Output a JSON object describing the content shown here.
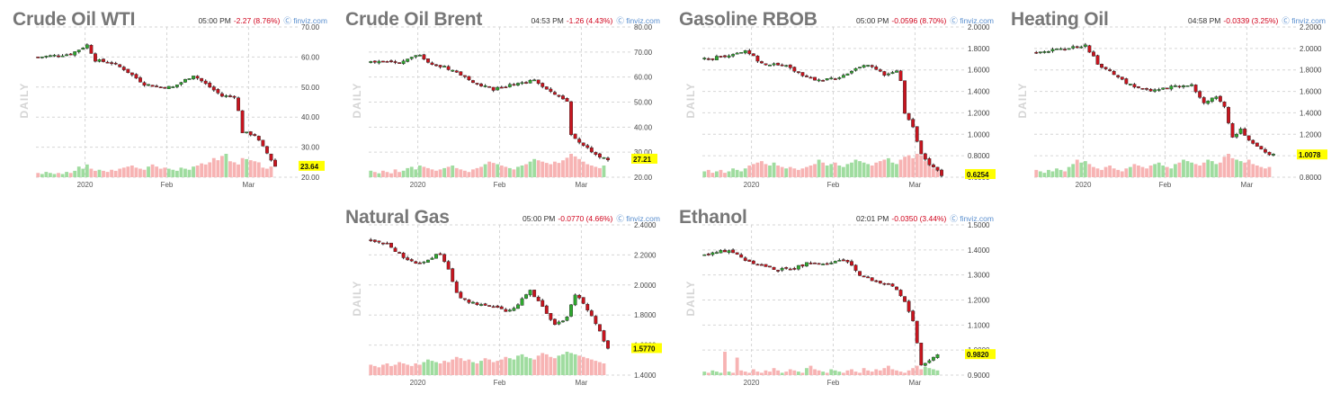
{
  "colors": {
    "up": "#2ea82e",
    "down": "#c8141e",
    "vol_up": "#9fdc9f",
    "vol_down": "#f7b3b3",
    "grid": "#d6d6d6",
    "last_bg": "#ffff00"
  },
  "chart_data": [
    {
      "type": "candlestick",
      "title": "Crude Oil WTI",
      "time": "05:00 PM",
      "change": "-2.27 (8.76%)",
      "source": "finviz.com",
      "side_label": "DAILY",
      "yticks": [
        "70.00",
        "60.00",
        "50.00",
        "40.00",
        "30.00",
        "20.00"
      ],
      "ylim": [
        20,
        70
      ],
      "xticks": [
        {
          "label": "2020",
          "at": 12
        },
        {
          "label": "Feb",
          "at": 32
        },
        {
          "label": "Mar",
          "at": 52
        }
      ],
      "n_days": 64,
      "anchors": [
        [
          0,
          60
        ],
        [
          8,
          61
        ],
        [
          12,
          64
        ],
        [
          14,
          59
        ],
        [
          18,
          58
        ],
        [
          21,
          56
        ],
        [
          26,
          51
        ],
        [
          30,
          50
        ],
        [
          33,
          50
        ],
        [
          38,
          54
        ],
        [
          42,
          50
        ],
        [
          45,
          47
        ],
        [
          48,
          47
        ],
        [
          49,
          42
        ],
        [
          50,
          35
        ],
        [
          53,
          34
        ],
        [
          56,
          28
        ],
        [
          58,
          23.64
        ]
      ],
      "last": "23.64",
      "volume": [
        4,
        3,
        5,
        4,
        3,
        4,
        3,
        5,
        4,
        6,
        10,
        8,
        12,
        8,
        6,
        7,
        6,
        5,
        7,
        6,
        8,
        9,
        10,
        11,
        9,
        8,
        7,
        10,
        12,
        10,
        8,
        9,
        8,
        7,
        6,
        9,
        8,
        7,
        10,
        11,
        13,
        12,
        14,
        18,
        16,
        20,
        22,
        15,
        14,
        12,
        18,
        17,
        16,
        15,
        14,
        9,
        8,
        10
      ]
    },
    {
      "type": "candlestick",
      "title": "Crude Oil Brent",
      "time": "04:53 PM",
      "change": "-1.26 (4.43%)",
      "source": "finviz.com",
      "side_label": "DAILY",
      "yticks": [
        "80.00",
        "70.00",
        "60.00",
        "50.00",
        "40.00",
        "30.00",
        "20.00"
      ],
      "ylim": [
        20,
        80
      ],
      "xticks": [
        {
          "label": "2020",
          "at": 12
        },
        {
          "label": "Feb",
          "at": 32
        },
        {
          "label": "Mar",
          "at": 52
        }
      ],
      "n_days": 64,
      "anchors": [
        [
          0,
          66
        ],
        [
          8,
          66
        ],
        [
          12,
          69
        ],
        [
          14,
          66
        ],
        [
          18,
          64
        ],
        [
          21,
          62
        ],
        [
          26,
          57
        ],
        [
          30,
          55
        ],
        [
          35,
          57
        ],
        [
          40,
          59
        ],
        [
          45,
          53
        ],
        [
          48,
          50
        ],
        [
          49,
          37
        ],
        [
          51,
          34
        ],
        [
          53,
          32
        ],
        [
          55,
          29
        ],
        [
          58,
          27.21
        ]
      ],
      "last": "27.21",
      "volume": [
        5,
        4,
        3,
        5,
        4,
        3,
        6,
        4,
        5,
        7,
        8,
        6,
        9,
        8,
        7,
        6,
        5,
        6,
        7,
        8,
        9,
        7,
        6,
        5,
        4,
        6,
        7,
        8,
        10,
        12,
        11,
        10,
        9,
        8,
        7,
        6,
        8,
        9,
        10,
        12,
        14,
        13,
        12,
        11,
        10,
        12,
        11,
        13,
        15,
        18,
        16,
        14,
        12,
        10,
        9,
        8,
        7,
        9
      ]
    },
    {
      "type": "candlestick",
      "title": "Gasoline RBOB",
      "time": "05:00 PM",
      "change": "-0.0596 (8.70%)",
      "source": "finviz.com",
      "side_label": "DAILY",
      "yticks": [
        "2.0000",
        "1.8000",
        "1.6000",
        "1.4000",
        "1.2000",
        "1.0000",
        "0.8000",
        "0.6000"
      ],
      "ylim": [
        0.6,
        2.0
      ],
      "xticks": [
        {
          "label": "2020",
          "at": 12
        },
        {
          "label": "Feb",
          "at": 32
        },
        {
          "label": "Mar",
          "at": 52
        }
      ],
      "n_days": 64,
      "anchors": [
        [
          0,
          1.7
        ],
        [
          6,
          1.73
        ],
        [
          10,
          1.78
        ],
        [
          14,
          1.66
        ],
        [
          20,
          1.64
        ],
        [
          24,
          1.55
        ],
        [
          28,
          1.5
        ],
        [
          32,
          1.52
        ],
        [
          35,
          1.57
        ],
        [
          40,
          1.65
        ],
        [
          44,
          1.55
        ],
        [
          47,
          1.58
        ],
        [
          48,
          1.5
        ],
        [
          49,
          1.2
        ],
        [
          51,
          1.06
        ],
        [
          53,
          0.82
        ],
        [
          55,
          0.72
        ],
        [
          58,
          0.6254
        ]
      ],
      "last": "0.6254",
      "volume": [
        4,
        5,
        3,
        4,
        5,
        3,
        4,
        6,
        5,
        4,
        6,
        8,
        9,
        10,
        11,
        9,
        8,
        10,
        8,
        7,
        6,
        7,
        6,
        5,
        6,
        7,
        8,
        9,
        12,
        10,
        8,
        9,
        10,
        8,
        7,
        9,
        10,
        12,
        11,
        10,
        9,
        8,
        10,
        11,
        12,
        13,
        10,
        9,
        12,
        14,
        15,
        13,
        16,
        15,
        11,
        8,
        6,
        7
      ]
    },
    {
      "type": "candlestick",
      "title": "Heating Oil",
      "time": "04:58 PM",
      "change": "-0.0339 (3.25%)",
      "source": "finviz.com",
      "side_label": "DAILY",
      "yticks": [
        "2.2000",
        "2.0000",
        "1.8000",
        "1.6000",
        "1.4000",
        "1.2000",
        "1.0000",
        "0.8000"
      ],
      "ylim": [
        0.8,
        2.2
      ],
      "xticks": [
        {
          "label": "2020",
          "at": 12
        },
        {
          "label": "Feb",
          "at": 32
        },
        {
          "label": "Mar",
          "at": 52
        }
      ],
      "n_days": 64,
      "anchors": [
        [
          0,
          1.97
        ],
        [
          6,
          1.99
        ],
        [
          10,
          2.02
        ],
        [
          12,
          2.03
        ],
        [
          15,
          1.86
        ],
        [
          18,
          1.78
        ],
        [
          22,
          1.68
        ],
        [
          25,
          1.63
        ],
        [
          28,
          1.6
        ],
        [
          33,
          1.64
        ],
        [
          38,
          1.66
        ],
        [
          41,
          1.5
        ],
        [
          44,
          1.55
        ],
        [
          46,
          1.45
        ],
        [
          48,
          1.18
        ],
        [
          50,
          1.24
        ],
        [
          52,
          1.15
        ],
        [
          55,
          1.05
        ],
        [
          58,
          1.0078
        ]
      ],
      "last": "1.0078",
      "volume": [
        5,
        4,
        3,
        5,
        4,
        6,
        5,
        4,
        7,
        9,
        12,
        10,
        11,
        9,
        7,
        6,
        5,
        7,
        8,
        6,
        5,
        4,
        6,
        7,
        9,
        8,
        7,
        6,
        8,
        9,
        10,
        8,
        7,
        6,
        9,
        10,
        12,
        11,
        10,
        9,
        8,
        10,
        12,
        11,
        9,
        10,
        14,
        16,
        13,
        12,
        11,
        10,
        12,
        9,
        8,
        7,
        6,
        7
      ]
    },
    {
      "type": "candlestick",
      "title": "Natural Gas",
      "time": "05:00 PM",
      "change": "-0.0770 (4.66%)",
      "source": "finviz.com",
      "side_label": "DAILY",
      "yticks": [
        "2.4000",
        "2.2000",
        "2.0000",
        "1.8000",
        "1.6000",
        "1.4000"
      ],
      "ylim": [
        1.4,
        2.4
      ],
      "xticks": [
        {
          "label": "2020",
          "at": 12
        },
        {
          "label": "Feb",
          "at": 32
        },
        {
          "label": "Mar",
          "at": 52
        }
      ],
      "n_days": 64,
      "anchors": [
        [
          0,
          2.3
        ],
        [
          4,
          2.27
        ],
        [
          8,
          2.19
        ],
        [
          11,
          2.14
        ],
        [
          14,
          2.17
        ],
        [
          17,
          2.21
        ],
        [
          19,
          2.1
        ],
        [
          21,
          1.94
        ],
        [
          23,
          1.9
        ],
        [
          26,
          1.87
        ],
        [
          30,
          1.86
        ],
        [
          33,
          1.82
        ],
        [
          36,
          1.87
        ],
        [
          39,
          1.97
        ],
        [
          42,
          1.85
        ],
        [
          45,
          1.73
        ],
        [
          48,
          1.78
        ],
        [
          50,
          1.94
        ],
        [
          52,
          1.88
        ],
        [
          55,
          1.74
        ],
        [
          57,
          1.63
        ],
        [
          58,
          1.577
        ]
      ],
      "last": "1.5770",
      "volume": [
        8,
        7,
        6,
        8,
        9,
        7,
        8,
        10,
        9,
        8,
        7,
        9,
        8,
        10,
        12,
        11,
        10,
        9,
        11,
        10,
        12,
        14,
        13,
        11,
        12,
        10,
        9,
        11,
        13,
        12,
        10,
        11,
        12,
        14,
        13,
        12,
        15,
        16,
        14,
        13,
        12,
        15,
        17,
        16,
        14,
        13,
        15,
        16,
        18,
        17,
        16,
        15,
        14,
        13,
        12,
        11,
        10,
        9
      ]
    },
    {
      "type": "candlestick",
      "title": "Ethanol",
      "time": "02:01 PM",
      "change": "-0.0350 (3.44%)",
      "source": "finviz.com",
      "side_label": "DAILY",
      "yticks": [
        "1.5000",
        "1.4000",
        "1.3000",
        "1.2000",
        "1.1000",
        "1.0000",
        "0.9000"
      ],
      "ylim": [
        0.9,
        1.5
      ],
      "xticks": [
        {
          "label": "2020",
          "at": 12
        },
        {
          "label": "Feb",
          "at": 32
        },
        {
          "label": "Mar",
          "at": 52
        }
      ],
      "n_days": 64,
      "anchors": [
        [
          0,
          1.38
        ],
        [
          6,
          1.4
        ],
        [
          10,
          1.36
        ],
        [
          14,
          1.34
        ],
        [
          18,
          1.32
        ],
        [
          22,
          1.33
        ],
        [
          26,
          1.35
        ],
        [
          30,
          1.34
        ],
        [
          33,
          1.36
        ],
        [
          36,
          1.34
        ],
        [
          38,
          1.3
        ],
        [
          41,
          1.28
        ],
        [
          45,
          1.26
        ],
        [
          47,
          1.24
        ],
        [
          49,
          1.19
        ],
        [
          51,
          1.12
        ],
        [
          53,
          0.94
        ],
        [
          55,
          0.96
        ],
        [
          57,
          0.982
        ]
      ],
      "last": "0.9820",
      "volume": [
        3,
        2,
        4,
        3,
        2,
        20,
        3,
        2,
        15,
        4,
        3,
        2,
        5,
        3,
        2,
        4,
        3,
        6,
        4,
        2,
        3,
        5,
        4,
        3,
        2,
        6,
        8,
        5,
        4,
        3,
        2,
        5,
        4,
        3,
        2,
        4,
        5,
        3,
        2,
        6,
        4,
        3,
        5,
        4,
        6,
        8,
        5,
        4,
        3,
        2,
        4,
        6,
        8,
        5,
        7,
        6,
        5,
        4
      ]
    }
  ]
}
